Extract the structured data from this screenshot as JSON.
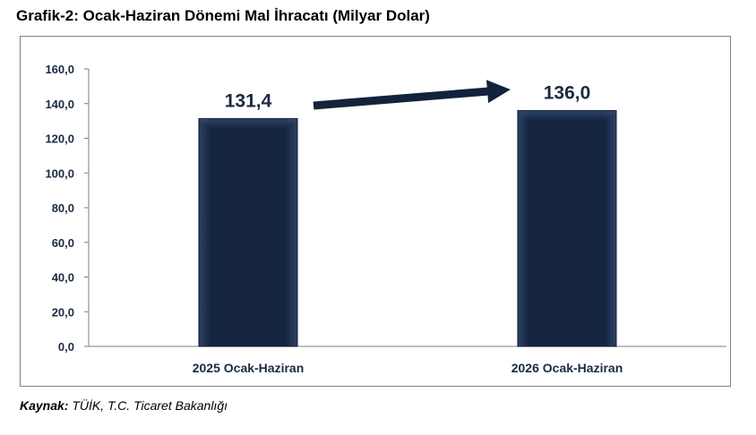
{
  "title": "Grafik-2: Ocak-Haziran Dönemi Mal İhracatı (Milyar Dolar)",
  "source": {
    "label": "Kaynak:",
    "text": "TÜİK, T.C. Ticaret Bakanlığı"
  },
  "colors": {
    "bar": "#15253f",
    "bar_light": "#2b4266",
    "arrow": "#13233c",
    "axis": "#7f7f7f"
  },
  "chart_data": {
    "type": "bar",
    "title": "Grafik-2: Ocak-Haziran Dönemi Mal İhracatı (Milyar Dolar)",
    "categories": [
      "2025 Ocak-Haziran",
      "2026 Ocak-Haziran"
    ],
    "values": [
      131.4,
      136.0
    ],
    "data_labels": [
      "131,4",
      "136,0"
    ],
    "ylim": [
      0,
      160
    ],
    "yticks": [
      0,
      20,
      40,
      60,
      80,
      100,
      120,
      140,
      160
    ],
    "ytick_labels": [
      "0,0",
      "20,0",
      "40,0",
      "60,0",
      "80,0",
      "100,0",
      "120,0",
      "140,0",
      "160,0"
    ],
    "grid": false,
    "legend": "none",
    "annotations": [
      "increase-arrow"
    ]
  }
}
